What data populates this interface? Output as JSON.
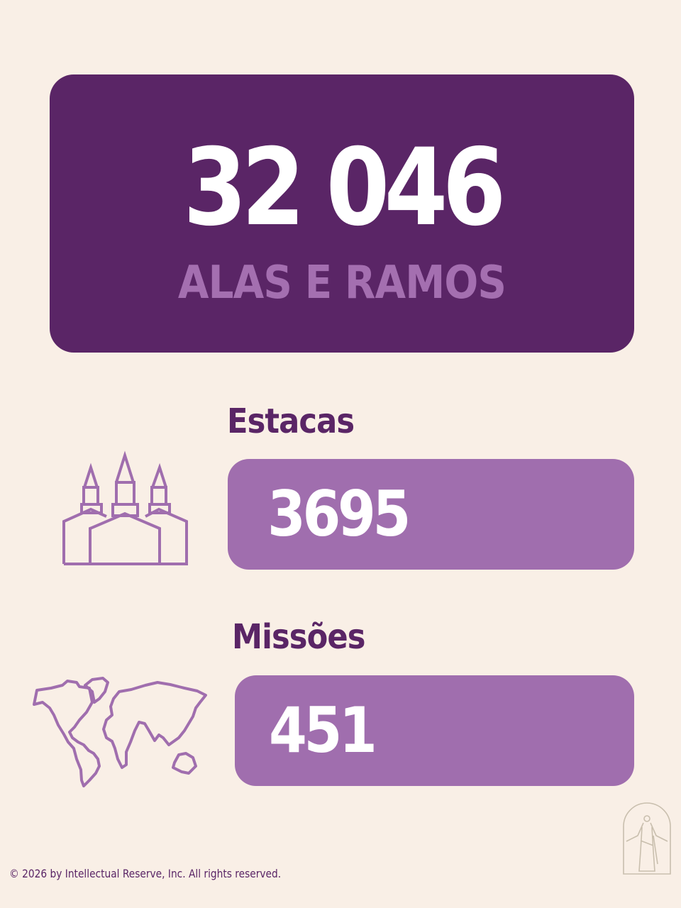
{
  "hero": {
    "value": "32 046",
    "label": "ALAS E RAMOS"
  },
  "stats": [
    {
      "label": "Estacas",
      "value": "3695",
      "icon": "temple-icon"
    },
    {
      "label": "Missões",
      "value": "451",
      "icon": "world-map-icon"
    }
  ],
  "footer": {
    "copyright": "© 2026 by Intellectual Reserve, Inc. All rights reserved."
  },
  "colors": {
    "background": "#f9efe6",
    "dark_purple": "#5a2566",
    "light_purple": "#a06eae",
    "logo": "#c9bfae"
  }
}
